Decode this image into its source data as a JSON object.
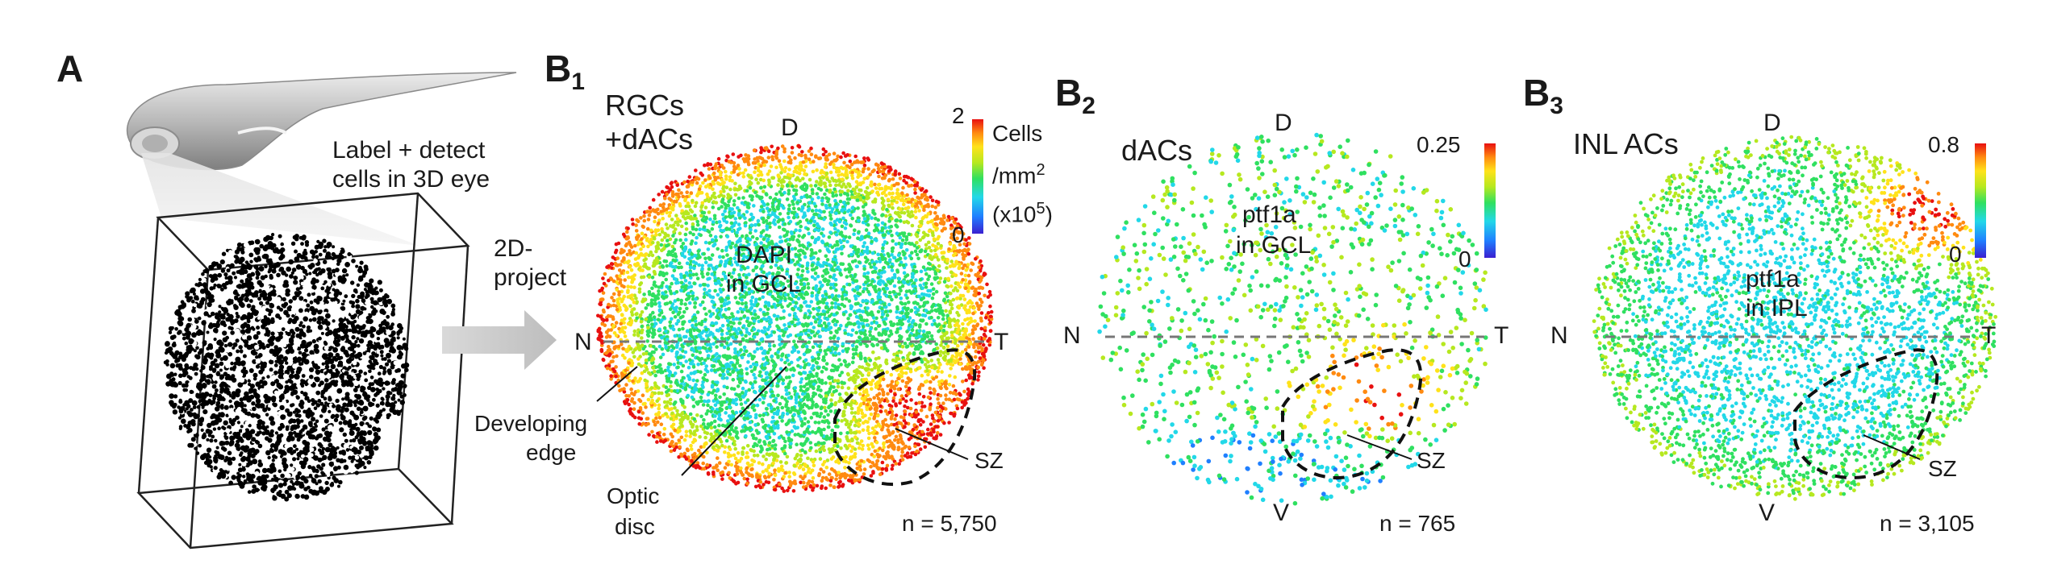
{
  "panelA": {
    "letter": "A",
    "caption_line1": "Label + detect",
    "caption_line2": "cells in 3D eye",
    "arrow_line1": "2D-",
    "arrow_line2": "project"
  },
  "panelB1": {
    "letter": "B",
    "sub": "1",
    "title_line1": "RGCs",
    "title_line2": "+dACs",
    "stain_line1": "DAPI",
    "stain_line2": "in GCL",
    "dir_dorsal": "D",
    "dir_nasal": "N",
    "dir_temporal": "T",
    "colorbar_max": "2",
    "colorbar_min": "0",
    "units_line1": "Cells",
    "units_line2": "/mm",
    "units_sup": "2",
    "units_line3": "(x10",
    "units_exp": "5",
    "units_close": ")",
    "label_developing1": "Developing",
    "label_developing2": "edge",
    "label_optic1": "Optic",
    "label_optic2": "disc",
    "label_sz": "SZ",
    "count": "n = 5,750"
  },
  "panelB2": {
    "letter": "B",
    "sub": "2",
    "title": "dACs",
    "stain_line1": "ptf1a",
    "stain_line2": "in GCL",
    "dir_dorsal": "D",
    "dir_ventral": "V",
    "dir_nasal": "N",
    "dir_temporal": "T",
    "colorbar_max": "0.25",
    "colorbar_min": "0",
    "label_sz": "SZ",
    "count": "n = 765"
  },
  "panelB3": {
    "letter": "B",
    "sub": "3",
    "title": "INL ACs",
    "stain_line1": "ptf1a",
    "stain_line2": "in IPL",
    "dir_dorsal": "D",
    "dir_ventral": "V",
    "dir_nasal": "N",
    "dir_temporal": "T",
    "colorbar_max": "0.8",
    "colorbar_min": "0",
    "label_sz": "SZ",
    "count": "n = 3,105"
  },
  "colors": {
    "colormap": [
      "#3a1fd0",
      "#1f7fff",
      "#22d8e8",
      "#2fe060",
      "#b6e81f",
      "#ffe21a",
      "#ff8a10",
      "#e81010"
    ],
    "dashed_line": "#7a7a7a",
    "text": "#1a1a1a"
  }
}
